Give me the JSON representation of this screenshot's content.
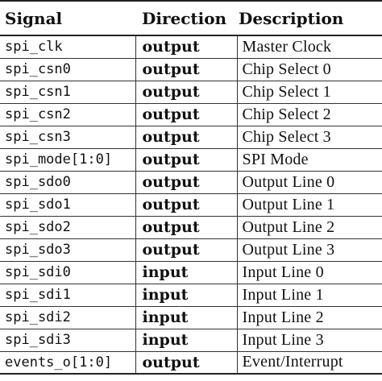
{
  "table": {
    "headers": {
      "signal": "Signal",
      "direction": "Direction",
      "description": "Description"
    },
    "rows": [
      {
        "signal": "spi_clk",
        "direction": "output",
        "description": "Master Clock"
      },
      {
        "signal": "spi_csn0",
        "direction": "output",
        "description": "Chip Select 0"
      },
      {
        "signal": "spi_csn1",
        "direction": "output",
        "description": "Chip Select 1"
      },
      {
        "signal": "spi_csn2",
        "direction": "output",
        "description": "Chip Select 2"
      },
      {
        "signal": "spi_csn3",
        "direction": "output",
        "description": "Chip Select 3"
      },
      {
        "signal": "spi_mode[1:0]",
        "direction": "output",
        "description": "SPI Mode"
      },
      {
        "signal": "spi_sdo0",
        "direction": "output",
        "description": "Output Line 0"
      },
      {
        "signal": "spi_sdo1",
        "direction": "output",
        "description": "Output Line 1"
      },
      {
        "signal": "spi_sdo2",
        "direction": "output",
        "description": "Output Line 2"
      },
      {
        "signal": "spi_sdo3",
        "direction": "output",
        "description": "Output Line 3"
      },
      {
        "signal": "spi_sdi0",
        "direction": "input",
        "description": "Input Line 0"
      },
      {
        "signal": "spi_sdi1",
        "direction": "input",
        "description": "Input Line 1"
      },
      {
        "signal": "spi_sdi2",
        "direction": "input",
        "description": "Input Line 2"
      },
      {
        "signal": "spi_sdi3",
        "direction": "input",
        "description": "Input Line 3"
      },
      {
        "signal": "events_o[1:0]",
        "direction": "output",
        "description": "Event/Interrupt"
      }
    ]
  }
}
